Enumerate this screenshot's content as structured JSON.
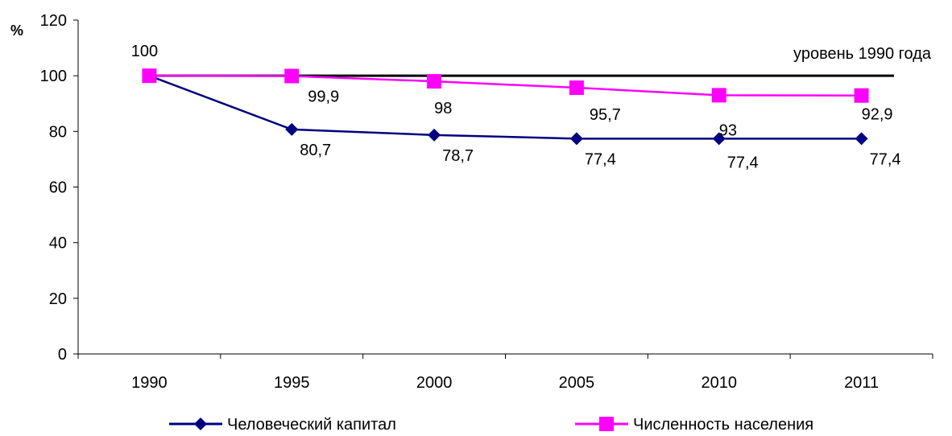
{
  "chart_data": {
    "type": "line",
    "categories": [
      "1990",
      "1995",
      "2000",
      "2005",
      "2010",
      "2011"
    ],
    "ylabel": "%",
    "ylim": [
      0,
      120
    ],
    "yticks": [
      0,
      20,
      40,
      60,
      80,
      100,
      120
    ],
    "grid": false,
    "legend_position": "bottom",
    "series": [
      {
        "name": "Человеческий капитал",
        "values": [
          100,
          80.7,
          78.7,
          77.4,
          77.4,
          77.4
        ],
        "labels": [
          "",
          "80,7",
          "78,7",
          "77,4",
          "77,4",
          "77,4"
        ],
        "color": "#000080",
        "marker": "diamond"
      },
      {
        "name": "Численность населения",
        "values": [
          100,
          99.9,
          98,
          95.7,
          93,
          92.9
        ],
        "labels": [
          "100",
          "99,9",
          "98",
          "95,7",
          "93",
          "92,9"
        ],
        "color": "#FF00FF",
        "marker": "square"
      }
    ],
    "reference_line": {
      "value": 100,
      "label": "уровень 1990 года",
      "color": "#000000"
    }
  }
}
